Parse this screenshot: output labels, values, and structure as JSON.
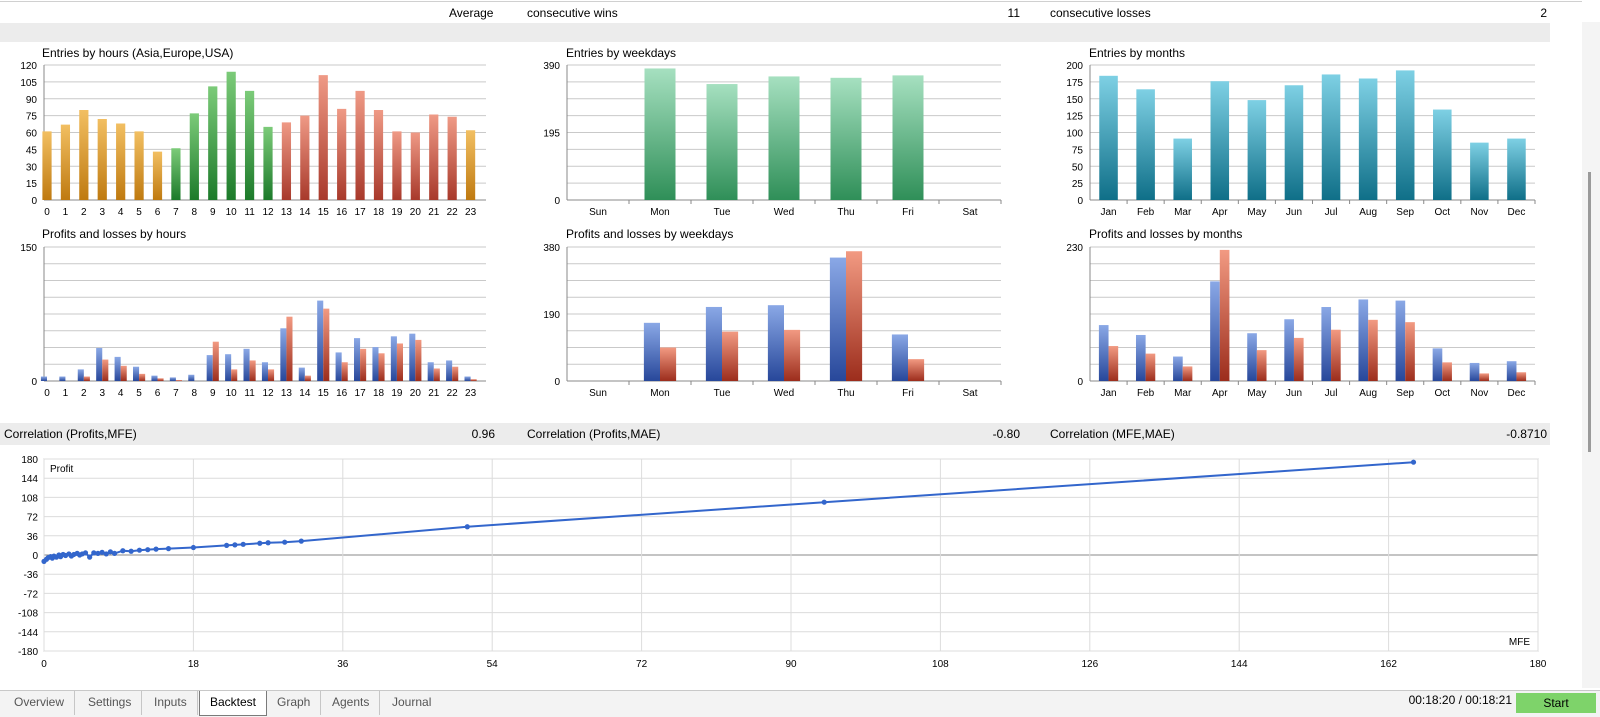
{
  "summary": {
    "label": "Average",
    "wins_label": "consecutive wins",
    "wins_value": "11",
    "losses_label": "consecutive losses",
    "losses_value": "2"
  },
  "correlation": {
    "pm_label": "Correlation (Profits,MFE)",
    "pm_value": "0.96",
    "pa_label": "Correlation (Profits,MAE)",
    "pa_value": "-0.80",
    "ma_label": "Correlation (MFE,MAE)",
    "ma_value": "-0.8710"
  },
  "colors": {
    "green": "#2e9a3a",
    "orange": "#d98b1c",
    "red": "#c8503f",
    "teal": "#2b8ea8",
    "mint": "#5bbd86",
    "blue": "#3a62b8",
    "loss": "#b54530",
    "line": "#3366cc"
  },
  "chart_data": [
    {
      "type": "bar",
      "title": "Entries by hours (Asia,Europe,USA)",
      "categories": [
        "0",
        "1",
        "2",
        "3",
        "4",
        "5",
        "6",
        "7",
        "8",
        "9",
        "10",
        "11",
        "12",
        "13",
        "14",
        "15",
        "16",
        "17",
        "18",
        "19",
        "20",
        "21",
        "22",
        "23"
      ],
      "values": [
        61,
        67,
        80,
        72,
        68,
        61,
        43,
        46,
        77,
        101,
        114,
        97,
        65,
        69,
        75,
        111,
        81,
        97,
        80,
        61,
        60,
        76,
        74,
        62
      ],
      "yticks": [
        "0",
        "15",
        "30",
        "45",
        "60",
        "75",
        "90",
        "105",
        "120"
      ],
      "ylim": [
        0,
        120
      ]
    },
    {
      "type": "bar",
      "title": "Entries by weekdays",
      "categories": [
        "Sun",
        "Mon",
        "Tue",
        "Wed",
        "Thu",
        "Fri",
        "Sat"
      ],
      "values": [
        0,
        380,
        335,
        357,
        353,
        360,
        0
      ],
      "yticks": [
        "0",
        "195",
        "390"
      ],
      "ylim": [
        0,
        390
      ]
    },
    {
      "type": "bar",
      "title": "Entries by months",
      "categories": [
        "Jan",
        "Feb",
        "Mar",
        "Apr",
        "May",
        "Jun",
        "Jul",
        "Aug",
        "Sep",
        "Oct",
        "Nov",
        "Dec"
      ],
      "values": [
        184,
        164,
        91,
        176,
        148,
        170,
        186,
        180,
        192,
        134,
        85,
        91
      ],
      "yticks": [
        "0",
        "25",
        "50",
        "75",
        "100",
        "125",
        "150",
        "175",
        "200"
      ],
      "ylim": [
        0,
        200
      ]
    },
    {
      "type": "bar",
      "title": "Profits and losses by hours",
      "categories": [
        "0",
        "1",
        "2",
        "3",
        "4",
        "5",
        "6",
        "7",
        "8",
        "9",
        "10",
        "11",
        "12",
        "13",
        "14",
        "15",
        "16",
        "17",
        "18",
        "19",
        "20",
        "21",
        "22",
        "23"
      ],
      "series": [
        {
          "values": [
            5,
            5,
            13,
            37,
            27,
            16,
            6,
            4,
            7,
            29,
            30,
            36,
            21,
            59,
            15,
            90,
            32,
            48,
            38,
            50,
            53,
            21,
            23,
            5
          ]
        },
        {
          "values": [
            0,
            0,
            5,
            24,
            17,
            8,
            3,
            1,
            0,
            44,
            13,
            23,
            13,
            72,
            6,
            81,
            21,
            36,
            31,
            42,
            46,
            14,
            16,
            2
          ]
        }
      ],
      "yticks": [
        "0",
        "150"
      ],
      "ylim": [
        0,
        150
      ]
    },
    {
      "type": "bar",
      "title": "Profits and losses by weekdays",
      "categories": [
        "Sun",
        "Mon",
        "Tue",
        "Wed",
        "Thu",
        "Fri",
        "Sat"
      ],
      "series": [
        {
          "values": [
            0,
            165,
            210,
            215,
            350,
            132,
            0
          ]
        },
        {
          "values": [
            0,
            95,
            140,
            145,
            368,
            62,
            0
          ]
        }
      ],
      "yticks": [
        "0",
        "190",
        "380"
      ],
      "ylim": [
        0,
        380
      ]
    },
    {
      "type": "bar",
      "title": "Profits and losses by months",
      "categories": [
        "Jan",
        "Feb",
        "Mar",
        "Apr",
        "May",
        "Jun",
        "Jul",
        "Aug",
        "Sep",
        "Oct",
        "Nov",
        "Dec"
      ],
      "series": [
        {
          "values": [
            96,
            79,
            42,
            171,
            82,
            106,
            127,
            140,
            138,
            56,
            31,
            34
          ]
        },
        {
          "values": [
            60,
            47,
            25,
            225,
            53,
            74,
            88,
            105,
            101,
            32,
            13,
            15
          ]
        }
      ],
      "yticks": [
        "0",
        "230"
      ],
      "ylim": [
        0,
        230
      ]
    },
    {
      "type": "scatter",
      "xlabel": "MFE",
      "ylabel": "Profit",
      "xticks": [
        "0",
        "18",
        "36",
        "54",
        "72",
        "90",
        "108",
        "126",
        "144",
        "162",
        "180"
      ],
      "yticks": [
        "180",
        "144",
        "108",
        "72",
        "36",
        "0",
        "-36",
        "-72",
        "-108",
        "-144",
        "-180"
      ],
      "xlim": [
        0,
        180
      ],
      "ylim": [
        -180,
        180
      ],
      "points": [
        [
          0,
          -12
        ],
        [
          0.3,
          -8
        ],
        [
          0.5,
          -5
        ],
        [
          0.8,
          -3
        ],
        [
          1,
          -6
        ],
        [
          1.2,
          -2
        ],
        [
          1.5,
          -4
        ],
        [
          1.8,
          0
        ],
        [
          2,
          -3
        ],
        [
          2.3,
          1
        ],
        [
          2.6,
          -1
        ],
        [
          3,
          2
        ],
        [
          3.3,
          -2
        ],
        [
          3.6,
          1
        ],
        [
          4,
          3
        ],
        [
          4.3,
          0
        ],
        [
          4.6,
          2
        ],
        [
          5,
          4
        ],
        [
          5.5,
          -4
        ],
        [
          6,
          4
        ],
        [
          6.5,
          3
        ],
        [
          7,
          5
        ],
        [
          7.5,
          2
        ],
        [
          8,
          6
        ],
        [
          8.5,
          3
        ],
        [
          9.5,
          8
        ],
        [
          10.5,
          7
        ],
        [
          11.5,
          9
        ],
        [
          12.5,
          10
        ],
        [
          13.5,
          11
        ],
        [
          15,
          12
        ],
        [
          18,
          14
        ],
        [
          22,
          18
        ],
        [
          23,
          19
        ],
        [
          24,
          20
        ],
        [
          26,
          22
        ],
        [
          27,
          23
        ],
        [
          29,
          24
        ],
        [
          31,
          26
        ],
        [
          51,
          53
        ],
        [
          94,
          99
        ],
        [
          165,
          174
        ]
      ]
    }
  ],
  "tabs": [
    "Overview",
    "Settings",
    "Inputs",
    "Backtest",
    "Graph",
    "Agents",
    "Journal"
  ],
  "active_tab": "Backtest",
  "timer": "00:18:20 / 00:18:21",
  "start_label": "Start"
}
